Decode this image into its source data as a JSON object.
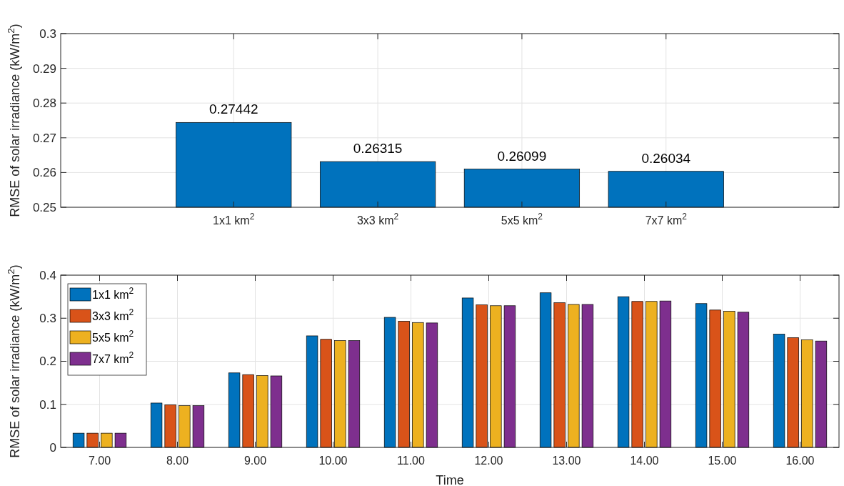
{
  "chart_data": [
    {
      "type": "bar",
      "ylabel": "RMSE of solar irradiance (kW/m$^{2}$)",
      "categories": [
        "1x1 km$^{2}$",
        "3x3 km$^{2}$",
        "5x5 km$^{2}$",
        "7x7 km$^{2}$"
      ],
      "values": [
        0.27442,
        0.26315,
        0.26099,
        0.26034
      ],
      "color": "#0072bd",
      "ylim": [
        0.25,
        0.3
      ],
      "yticks": [
        0.25,
        0.26,
        0.27,
        0.28,
        0.29,
        0.3
      ],
      "grid": true,
      "data_labels": true
    },
    {
      "type": "bar",
      "xlabel": "Time",
      "ylabel": "RMSE of solar irradiance (kW/m$^{2}$)",
      "categories": [
        "7.00",
        "8.00",
        "9.00",
        "10.00",
        "11.00",
        "12.00",
        "13.00",
        "14.00",
        "15.00",
        "16.00"
      ],
      "series": [
        {
          "name": "1x1 km$^{2}$",
          "color": "#0072bd",
          "values": [
            0.033,
            0.103,
            0.173,
            0.259,
            0.302,
            0.347,
            0.359,
            0.35,
            0.334,
            0.263
          ]
        },
        {
          "name": "3x3 km$^{2}$",
          "color": "#d95319",
          "values": [
            0.033,
            0.099,
            0.169,
            0.251,
            0.293,
            0.331,
            0.336,
            0.339,
            0.319,
            0.255
          ]
        },
        {
          "name": "5x5 km$^{2}$",
          "color": "#edb120",
          "values": [
            0.033,
            0.097,
            0.167,
            0.248,
            0.29,
            0.329,
            0.332,
            0.339,
            0.316,
            0.25
          ]
        },
        {
          "name": "7x7 km$^{2}$",
          "color": "#7e2f8e",
          "values": [
            0.033,
            0.097,
            0.166,
            0.248,
            0.289,
            0.329,
            0.332,
            0.34,
            0.314,
            0.247
          ]
        }
      ],
      "ylim": [
        0,
        0.4
      ],
      "yticks": [
        0,
        0.1,
        0.2,
        0.3,
        0.4
      ],
      "grid": true,
      "legend": "top left"
    }
  ]
}
